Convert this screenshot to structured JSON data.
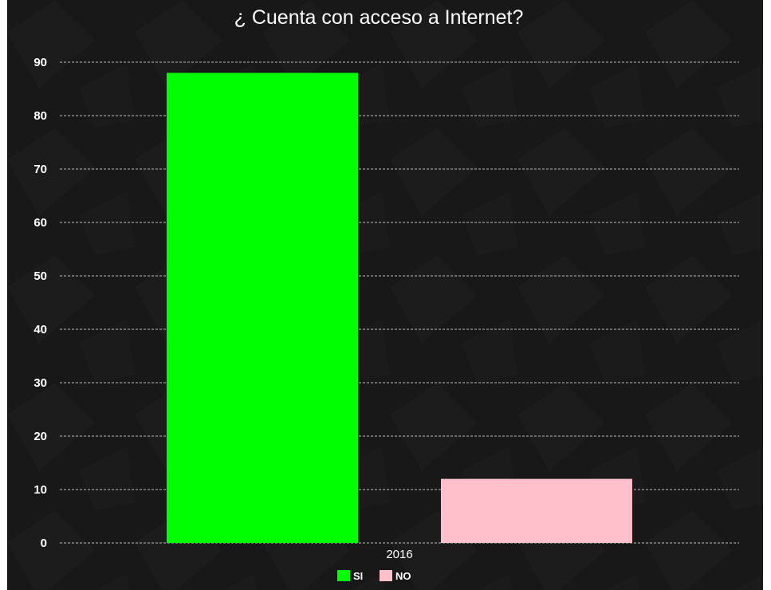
{
  "chart_data": {
    "type": "bar",
    "title": "¿ Cuenta con acceso a Internet?",
    "categories": [
      "2016"
    ],
    "series": [
      {
        "name": "SI",
        "values": [
          88
        ],
        "color": "#00ff00"
      },
      {
        "name": "NO",
        "values": [
          12
        ],
        "color": "#ffc0cb"
      }
    ],
    "ylim": [
      0,
      90
    ],
    "yticks": [
      0,
      10,
      20,
      30,
      40,
      50,
      60,
      70,
      80,
      90
    ],
    "grid": true,
    "legend": "bottom-center",
    "xlabel": "",
    "ylabel": ""
  },
  "colors": {
    "background": "#181818",
    "text": "#ffffff",
    "grid": "#bdbdbd"
  }
}
